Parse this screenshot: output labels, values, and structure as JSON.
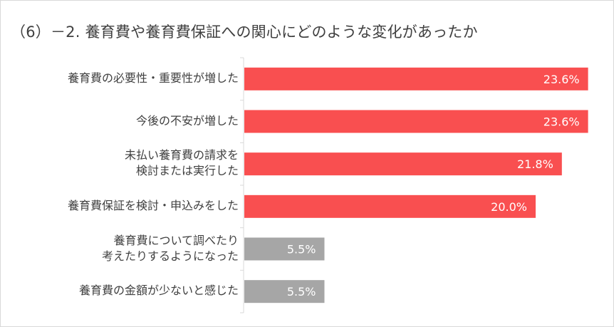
{
  "title": "（6）－2. 養育費や養育費保証への関心にどのような変化があったか",
  "colors": {
    "primary": "#f94f50",
    "secondary": "#a6a6a6",
    "axis": "#d9d9d9",
    "text": "#404040"
  },
  "chart_data": {
    "type": "bar",
    "orientation": "horizontal",
    "title": "（6）－2. 養育費や養育費保証への関心にどのような変化があったか",
    "categories": [
      [
        "養育費の必要性・重要性が増した"
      ],
      [
        "今後の不安が増した"
      ],
      [
        "未払い養育費の請求を",
        "検討または実行した"
      ],
      [
        "養育費保証を検討・申込みをした"
      ],
      [
        "養育費について調べたり",
        "考えたりするようになった"
      ],
      [
        "養育費の金額が少ないと感じた"
      ]
    ],
    "values": [
      23.6,
      23.6,
      21.8,
      20.0,
      5.5,
      5.5
    ],
    "value_labels": [
      "23.6%",
      "23.6%",
      "21.8%",
      "20.0%",
      "5.5%",
      "5.5%"
    ],
    "bar_colors": [
      "#f94f50",
      "#f94f50",
      "#f94f50",
      "#f94f50",
      "#a6a6a6",
      "#a6a6a6"
    ],
    "xlim": [
      0,
      25
    ],
    "grid": false,
    "legend": "none"
  }
}
